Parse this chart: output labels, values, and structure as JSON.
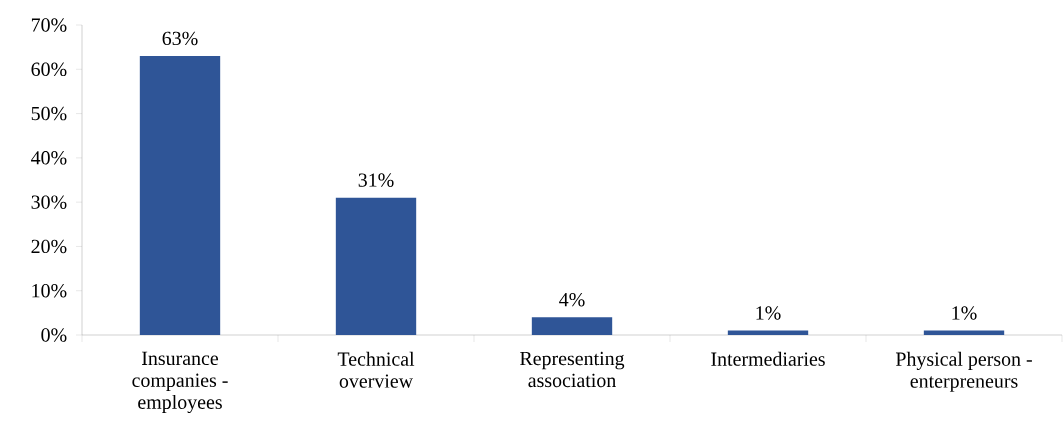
{
  "chart_data": {
    "type": "bar",
    "categories": [
      "Insurance companies - employees",
      "Technical overview",
      "Representing association",
      "Intermediaries",
      "Physical person - enterpreneurs"
    ],
    "values": [
      63,
      31,
      4,
      1,
      1
    ],
    "value_labels": [
      "63%",
      "31%",
      "4%",
      "1%",
      "1%"
    ],
    "color": "#2f5597",
    "ylim": [
      0,
      70
    ],
    "yticks": [
      {
        "value": 0,
        "label": "0%"
      },
      {
        "value": 10,
        "label": "10%"
      },
      {
        "value": 20,
        "label": "20%"
      },
      {
        "value": 30,
        "label": "30%"
      },
      {
        "value": 40,
        "label": "40%"
      },
      {
        "value": 50,
        "label": "50%"
      },
      {
        "value": 60,
        "label": "60%"
      },
      {
        "value": 70,
        "label": "70%"
      }
    ],
    "marker": "none"
  }
}
